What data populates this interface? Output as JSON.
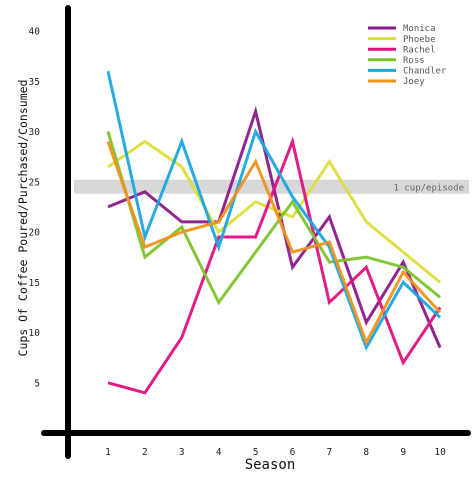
{
  "chart_data": {
    "type": "line",
    "xlabel": "Season",
    "ylabel": "Cups Of Coffee Poured/Purchased/Consumed",
    "categories": [
      "1",
      "2",
      "3",
      "4",
      "5",
      "6",
      "7",
      "8",
      "9",
      "10"
    ],
    "y_ticks": [
      "5",
      "10",
      "15",
      "20",
      "25",
      "30",
      "35",
      "40"
    ],
    "ylim": [
      0,
      42
    ],
    "grid": false,
    "legend_position": "top-right",
    "reference_band": {
      "label": "1 cup/episode",
      "from": 23.8,
      "to": 25.2,
      "color": "#d8d8d8"
    },
    "series": [
      {
        "name": "Monica",
        "color": "#8b1a8b",
        "values": [
          22.5,
          24,
          21,
          21,
          32,
          16.5,
          21.5,
          11,
          17,
          8.5
        ]
      },
      {
        "name": "Phoebe",
        "color": "#dede3a",
        "values": [
          26.5,
          29,
          26.5,
          20,
          23,
          21.5,
          27,
          21,
          18,
          15
        ]
      },
      {
        "name": "Rachel",
        "color": "#e0117f",
        "values": [
          5,
          4,
          9.5,
          19.5,
          19.5,
          29,
          13,
          16.5,
          7,
          12.5
        ]
      },
      {
        "name": "Ross",
        "color": "#7dc42b",
        "values": [
          30,
          17.5,
          20.5,
          13,
          18,
          23,
          17,
          17.5,
          16.5,
          13.5
        ]
      },
      {
        "name": "Chandler",
        "color": "#1aa7e0",
        "values": [
          36,
          19.5,
          29,
          18.5,
          30,
          23.5,
          18.5,
          8.5,
          15,
          11.5
        ]
      },
      {
        "name": "Joey",
        "color": "#f0921e",
        "values": [
          29,
          18.5,
          20,
          21,
          27,
          18,
          19,
          9,
          16,
          12
        ]
      }
    ]
  }
}
